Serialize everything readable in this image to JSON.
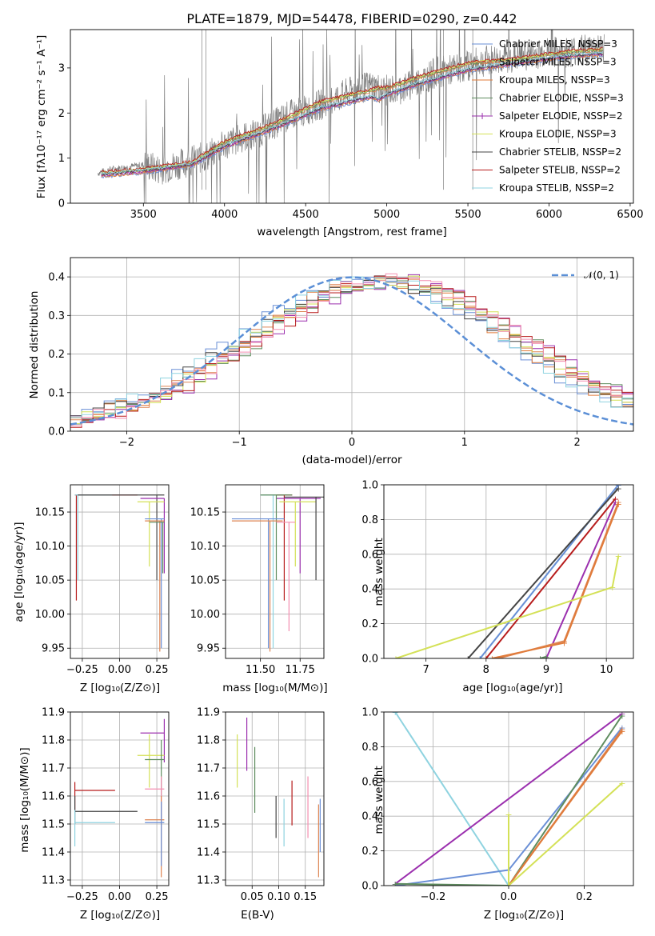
{
  "chart_data": [
    {
      "type": "line",
      "title": "PLATE=1879, MJD=54478, FIBERID=0290, z=0.442",
      "xlabel": "wavelength [Angstrom, rest frame]",
      "ylabel": "Flux [fλ10⁻¹⁷ erg cm⁻² s⁻¹ A⁻¹]",
      "xlim": [
        3050,
        6520
      ],
      "ylim": [
        0,
        3.85
      ],
      "xticks": [
        "3500",
        "4000",
        "4500",
        "5000",
        "5500",
        "6000",
        "6500"
      ],
      "yticks": [
        "0",
        "1",
        "2",
        "3"
      ],
      "legend_position": "top-right",
      "legend": [
        {
          "name": "Chabrier MILES, N_SSP=3",
          "color": "#6a8fd6"
        },
        {
          "name": "Salpeter MILES, N_SSP=3",
          "color": "#dd8452"
        },
        {
          "name": "Kroupa MILES, N_SSP=3",
          "color": "#e07b3a"
        },
        {
          "name": "Chabrier ELODIE, N_SSP=3",
          "color": "#5e8c5e"
        },
        {
          "name": "Salpeter ELODIE, N_SSP=2",
          "color": "#9b2fae"
        },
        {
          "name": "Kroupa ELODIE, N_SSP=3",
          "color": "#d4e157"
        },
        {
          "name": "Chabrier STELIB, N_SSP=2",
          "color": "#444444"
        },
        {
          "name": "Salpeter STELIB, N_SSP=2",
          "color": "#b71c1c"
        },
        {
          "name": "Kroupa STELIB, N_SSP=2",
          "color": "#8fd3e0"
        }
      ],
      "spectrum": {
        "x": [
          3200,
          3300,
          3400,
          3500,
          3600,
          3700,
          3800,
          3900,
          4000,
          4100,
          4200,
          4300,
          4400,
          4500,
          4600,
          4700,
          4800,
          4900,
          5000,
          5100,
          5200,
          5300,
          5400,
          5500,
          5600,
          5700,
          5800,
          5900,
          6000,
          6100,
          6200,
          6300
        ],
        "y": [
          0.65,
          0.75,
          0.8,
          0.85,
          0.75,
          0.85,
          0.95,
          1.05,
          1.3,
          1.45,
          1.55,
          1.75,
          1.95,
          2.05,
          2.2,
          2.35,
          2.5,
          2.6,
          2.5,
          2.55,
          2.7,
          2.9,
          2.95,
          3.05,
          3.15,
          3.2,
          3.25,
          3.3,
          3.35,
          3.35,
          3.4,
          3.45
        ]
      },
      "models": [
        {
          "x": [
            3200,
            3500,
            3800,
            4000,
            4300,
            4600,
            4900,
            4950,
            5000,
            5200,
            5500,
            5800,
            6100,
            6300
          ],
          "y": [
            0.6,
            0.7,
            0.85,
            1.25,
            1.65,
            2.1,
            2.35,
            2.3,
            2.4,
            2.65,
            2.95,
            3.1,
            3.25,
            3.3
          ]
        },
        {
          "x": [
            3200,
            3500,
            3800,
            4000,
            4300,
            4600,
            4900,
            4950,
            5000,
            5200,
            5500,
            5800,
            6100,
            6300
          ],
          "y": [
            0.65,
            0.75,
            0.9,
            1.35,
            1.75,
            2.25,
            2.5,
            2.55,
            2.55,
            2.8,
            3.1,
            3.2,
            3.35,
            3.4
          ]
        }
      ]
    },
    {
      "type": "area",
      "title": "",
      "xlabel": "(data-model)/error",
      "ylabel": "Normed distribution",
      "xlim": [
        -2.5,
        2.5
      ],
      "ylim": [
        0,
        0.45
      ],
      "xticks": [
        "−2",
        "−1",
        "0",
        "1",
        "2"
      ],
      "yticks": [
        "0.0",
        "0.1",
        "0.2",
        "0.3",
        "0.4"
      ],
      "legend_position": "top-right",
      "legend": [
        {
          "name": "𝒩(0, 1)",
          "color": "#5b8fd6"
        }
      ],
      "normal_curve": {
        "mu": 0,
        "sigma": 1
      }
    },
    {
      "type": "scatter",
      "xlabel": "Z [log₁₀(Z/Z⊙)]",
      "ylabel": "age  [log₁₀(age/yr)]",
      "xlim": [
        -0.33,
        0.33
      ],
      "ylim": [
        9.935,
        10.19
      ],
      "xticks": [
        "−0.25",
        "0.00",
        "0.25"
      ],
      "yticks": [
        "9.95",
        "10.00",
        "10.05",
        "10.10",
        "10.15"
      ]
    },
    {
      "type": "scatter",
      "xlabel": "mass [log₁₀(M/M⊙)]",
      "ylabel": "",
      "xlim": [
        11.28,
        11.9
      ],
      "ylim": [
        9.935,
        10.19
      ],
      "xticks": [
        "11.50",
        "11.75"
      ],
      "yticks": [
        "9.95",
        "10.00",
        "10.05",
        "10.10",
        "10.15"
      ]
    },
    {
      "type": "line",
      "xlabel": "age  [log₁₀(age/yr)]",
      "ylabel": "mass weight",
      "xlim": [
        6.3,
        10.45
      ],
      "ylim": [
        0,
        1
      ],
      "xticks": [
        "7",
        "8",
        "9",
        "10"
      ],
      "yticks": [
        "0.0",
        "0.2",
        "0.4",
        "0.6",
        "0.8",
        "1.0"
      ],
      "series": [
        {
          "color": "#8fd3e0",
          "x": [
            7.9,
            10.2
          ],
          "y": [
            0.0,
            1.0
          ]
        },
        {
          "color": "#6a8fd6",
          "x": [
            7.9,
            10.2
          ],
          "y": [
            0.0,
            1.0
          ]
        },
        {
          "color": "#444444",
          "x": [
            7.7,
            10.2
          ],
          "y": [
            0.0,
            0.98
          ]
        },
        {
          "color": "#b71c1c",
          "x": [
            8.0,
            10.15
          ],
          "y": [
            0.0,
            0.92
          ]
        },
        {
          "color": "#9b2fae",
          "x": [
            9.0,
            10.15
          ],
          "y": [
            0.0,
            0.9
          ]
        },
        {
          "color": "#dd8452",
          "x": [
            8.2,
            9.3,
            10.2
          ],
          "y": [
            0.0,
            0.1,
            0.9
          ]
        },
        {
          "color": "#e07b3a",
          "x": [
            8.1,
            9.3,
            10.2
          ],
          "y": [
            0.0,
            0.09,
            0.89
          ]
        },
        {
          "color": "#d4e157",
          "x": [
            6.5,
            10.1,
            10.2
          ],
          "y": [
            0.0,
            0.41,
            0.59
          ]
        },
        {
          "color": "#5e8c5e",
          "x": [
            8.9,
            9.0
          ],
          "y": [
            0.0,
            0.01
          ]
        }
      ]
    },
    {
      "type": "scatter",
      "xlabel": "Z [log₁₀(Z/Z⊙)]",
      "ylabel": "mass [log₁₀(M/M⊙)]",
      "xlim": [
        -0.33,
        0.33
      ],
      "ylim": [
        11.28,
        11.9
      ],
      "xticks": [
        "−0.25",
        "0.00",
        "0.25"
      ],
      "yticks": [
        "11.3",
        "11.4",
        "11.5",
        "11.6",
        "11.7",
        "11.8",
        "11.9"
      ]
    },
    {
      "type": "scatter",
      "xlabel": "E(B-V)",
      "ylabel": "",
      "xlim": [
        0.0,
        0.185
      ],
      "ylim": [
        11.28,
        11.9
      ],
      "xticks": [
        "0.05",
        "0.10",
        "0.15"
      ],
      "yticks": [
        "11.3",
        "11.4",
        "11.5",
        "11.6",
        "11.7",
        "11.8",
        "11.9"
      ]
    },
    {
      "type": "line",
      "xlabel": "Z [log₁₀(Z/Z⊙)]",
      "ylabel": "mass weight",
      "xlim": [
        -0.33,
        0.33
      ],
      "ylim": [
        0,
        1
      ],
      "xticks": [
        "−0.2",
        "0.0",
        "0.2"
      ],
      "yticks": [
        "0.0",
        "0.2",
        "0.4",
        "0.6",
        "0.8",
        "1.0"
      ],
      "series": [
        {
          "color": "#8fd3e0",
          "x": [
            -0.3,
            0.0
          ],
          "y": [
            1.0,
            0.0
          ]
        },
        {
          "color": "#6a8fd6",
          "x": [
            -0.3,
            0.0,
            0.3
          ],
          "y": [
            0.0,
            0.09,
            0.91
          ]
        },
        {
          "color": "#9b2fae",
          "x": [
            -0.3,
            0.3
          ],
          "y": [
            0.01,
            0.99
          ]
        },
        {
          "color": "#5e8c5e",
          "x": [
            -0.3,
            0.0,
            0.3
          ],
          "y": [
            0.01,
            0.0,
            0.98
          ]
        },
        {
          "color": "#dd8452",
          "x": [
            0.0,
            0.3
          ],
          "y": [
            0.0,
            0.9
          ]
        },
        {
          "color": "#e07b3a",
          "x": [
            0.0,
            0.3
          ],
          "y": [
            0.0,
            0.89
          ]
        },
        {
          "color": "#d4e157",
          "x": [
            0.0,
            0.3
          ],
          "y": [
            0.0,
            0.59
          ]
        },
        {
          "color": "#d4e157",
          "x": [
            0.0,
            0.0
          ],
          "y": [
            0.0,
            0.41
          ]
        }
      ]
    }
  ]
}
